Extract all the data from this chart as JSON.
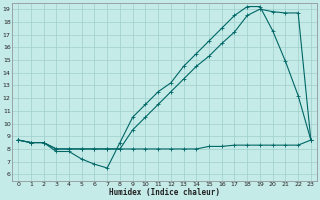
{
  "xlabel": "Humidex (Indice chaleur)",
  "bg_color": "#c5ebe8",
  "grid_color": "#9fcfcc",
  "line_color": "#006666",
  "xlim": [
    -0.5,
    23.5
  ],
  "ylim": [
    5.5,
    19.5
  ],
  "xticks": [
    0,
    1,
    2,
    3,
    4,
    5,
    6,
    7,
    8,
    9,
    10,
    11,
    12,
    13,
    14,
    15,
    16,
    17,
    18,
    19,
    20,
    21,
    22,
    23
  ],
  "yticks": [
    6,
    7,
    8,
    9,
    10,
    11,
    12,
    13,
    14,
    15,
    16,
    17,
    18,
    19
  ],
  "line1_x": [
    0,
    1,
    2,
    3,
    4,
    5,
    6,
    7,
    8,
    9,
    10,
    11,
    12,
    13,
    14,
    15,
    16,
    17,
    18,
    19,
    20,
    21,
    22,
    23
  ],
  "line1_y": [
    8.7,
    8.5,
    8.5,
    8.0,
    8.0,
    8.0,
    8.0,
    8.0,
    8.0,
    8.0,
    8.0,
    8.0,
    8.0,
    8.0,
    8.0,
    8.2,
    8.2,
    8.3,
    8.3,
    8.3,
    8.3,
    8.3,
    8.3,
    8.7
  ],
  "line2_x": [
    0,
    1,
    2,
    3,
    4,
    5,
    6,
    7,
    8,
    9,
    10,
    11,
    12,
    13,
    14,
    15,
    16,
    17,
    18,
    19,
    20,
    21,
    22,
    23
  ],
  "line2_y": [
    8.7,
    8.5,
    8.5,
    7.8,
    7.8,
    7.2,
    6.8,
    6.5,
    8.5,
    10.5,
    11.5,
    12.5,
    13.2,
    14.5,
    15.5,
    16.5,
    17.5,
    18.5,
    19.2,
    19.2,
    17.3,
    14.9,
    12.2,
    8.7
  ],
  "line3_x": [
    0,
    1,
    2,
    3,
    4,
    5,
    6,
    7,
    8,
    9,
    10,
    11,
    12,
    13,
    14,
    15,
    16,
    17,
    18,
    19,
    20,
    21,
    22,
    23
  ],
  "line3_y": [
    8.7,
    8.5,
    8.5,
    8.0,
    8.0,
    8.0,
    8.0,
    8.0,
    8.0,
    9.5,
    10.5,
    11.5,
    12.5,
    13.5,
    14.5,
    15.3,
    16.3,
    17.2,
    18.5,
    19.0,
    18.8,
    18.7,
    18.7,
    8.7
  ]
}
